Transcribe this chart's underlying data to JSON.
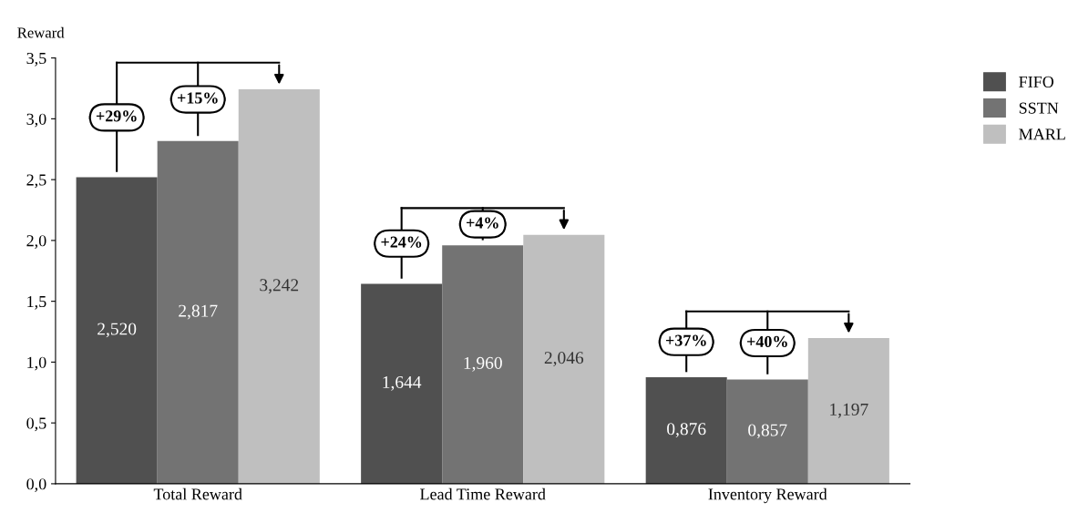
{
  "chart_data": {
    "type": "bar",
    "ylabel": "Reward",
    "categories": [
      "Total Reward",
      "Lead Time Reward",
      "Inventory Reward"
    ],
    "series": [
      {
        "name": "FIFO",
        "color": "#505050",
        "values": [
          2.52,
          1.644,
          0.876
        ],
        "value_labels": [
          "2,520",
          "1,644",
          "0,876"
        ]
      },
      {
        "name": "SSTN",
        "color": "#737373",
        "values": [
          2.817,
          1.96,
          0.857
        ],
        "value_labels": [
          "2,817",
          "1,960",
          "0,857"
        ]
      },
      {
        "name": "MARL",
        "color": "#bfbfbf",
        "values": [
          3.242,
          2.046,
          1.197
        ],
        "value_labels": [
          "3,242",
          "2,046",
          "1,197"
        ]
      }
    ],
    "ylim": [
      0,
      3.5
    ],
    "yticks": [
      {
        "value": 0,
        "label": "0,0"
      },
      {
        "value": 0.5,
        "label": "0,5"
      },
      {
        "value": 1.0,
        "label": "1,0"
      },
      {
        "value": 1.5,
        "label": "1,5"
      },
      {
        "value": 2.0,
        "label": "2,0"
      },
      {
        "value": 2.5,
        "label": "2,5"
      },
      {
        "value": 3.0,
        "label": "3,0"
      },
      {
        "value": 3.5,
        "label": "3,5"
      }
    ],
    "annotations": [
      "+29%",
      "+15%",
      "+24%",
      "+4%",
      "+37%",
      "+40%"
    ],
    "legend": "top right",
    "grid": false
  }
}
